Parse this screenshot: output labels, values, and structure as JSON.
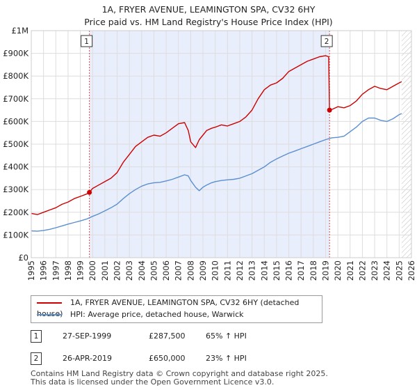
{
  "title_line1": "1A, FRYER AVENUE, LEAMINGTON SPA, CV32 6HY",
  "title_line2": "Price paid vs. HM Land Registry's House Price Index (HPI)",
  "colors": {
    "property": "#cc0000",
    "hpi": "#5b8fd0",
    "band": "#e8eefb",
    "hatch": "#bbbbbb"
  },
  "legend": {
    "property_label": "1A, FRYER AVENUE, LEAMINGTON SPA, CV32 6HY (detached house)",
    "hpi_label": "HPI: Average price, detached house, Warwick"
  },
  "sales": [
    {
      "n": "1",
      "date": "27-SEP-1999",
      "price": "£287,500",
      "hpi": "65% ↑ HPI"
    },
    {
      "n": "2",
      "date": "26-APR-2019",
      "price": "£650,000",
      "hpi": "23% ↑ HPI"
    }
  ],
  "footer_line1": "Contains HM Land Registry data © Crown copyright and database right 2025.",
  "footer_line2": "This data is licensed under the Open Government Licence v3.0.",
  "chart_data": {
    "type": "line",
    "xlim": [
      1995,
      2026
    ],
    "ylim": [
      0,
      1000000
    ],
    "x_ticks": [
      1995,
      1996,
      1997,
      1998,
      1999,
      2000,
      2001,
      2002,
      2003,
      2004,
      2005,
      2006,
      2007,
      2008,
      2009,
      2010,
      2011,
      2012,
      2013,
      2014,
      2015,
      2016,
      2017,
      2018,
      2019,
      2020,
      2021,
      2022,
      2023,
      2024,
      2025,
      2026
    ],
    "y_ticks": [
      0,
      100000,
      200000,
      300000,
      400000,
      500000,
      600000,
      700000,
      800000,
      900000,
      1000000
    ],
    "y_tick_labels": [
      "£0",
      "£100K",
      "£200K",
      "£300K",
      "£400K",
      "£500K",
      "£600K",
      "£700K",
      "£800K",
      "£900K",
      "£1M"
    ],
    "band": [
      1999.74,
      2019.32
    ],
    "hatch_from": 2025.2,
    "markers": [
      {
        "label": "1",
        "x": 1999.74,
        "y": 287500
      },
      {
        "label": "2",
        "x": 2019.32,
        "y": 650000
      }
    ],
    "series": [
      {
        "name": "1A, FRYER AVENUE, LEAMINGTON SPA, CV32 6HY (detached house)",
        "color": "#cc0000",
        "x": [
          1995.0,
          1995.5,
          1996.0,
          1996.5,
          1997.0,
          1997.5,
          1998.0,
          1998.5,
          1999.0,
          1999.5,
          1999.74,
          2000.0,
          2000.5,
          2001.0,
          2001.5,
          2002.0,
          2002.5,
          2003.0,
          2003.5,
          2004.0,
          2004.5,
          2005.0,
          2005.5,
          2006.0,
          2006.5,
          2007.0,
          2007.5,
          2007.8,
          2008.0,
          2008.4,
          2008.7,
          2009.0,
          2009.3,
          2009.7,
          2010.0,
          2010.5,
          2011.0,
          2011.5,
          2012.0,
          2012.5,
          2013.0,
          2013.5,
          2014.0,
          2014.5,
          2015.0,
          2015.5,
          2016.0,
          2016.5,
          2017.0,
          2017.5,
          2018.0,
          2018.5,
          2019.0,
          2019.25,
          2019.32,
          2019.6,
          2020.0,
          2020.5,
          2021.0,
          2021.5,
          2022.0,
          2022.5,
          2023.0,
          2023.5,
          2024.0,
          2024.5,
          2025.0,
          2025.2
        ],
        "values": [
          195000,
          190000,
          200000,
          210000,
          220000,
          235000,
          245000,
          260000,
          270000,
          280000,
          287500,
          305000,
          320000,
          335000,
          350000,
          375000,
          420000,
          455000,
          490000,
          510000,
          530000,
          540000,
          535000,
          550000,
          570000,
          590000,
          595000,
          560000,
          510000,
          485000,
          520000,
          540000,
          560000,
          570000,
          575000,
          585000,
          580000,
          590000,
          600000,
          620000,
          650000,
          700000,
          740000,
          760000,
          770000,
          790000,
          820000,
          835000,
          850000,
          865000,
          875000,
          885000,
          890000,
          885000,
          650000,
          655000,
          665000,
          660000,
          670000,
          690000,
          720000,
          740000,
          755000,
          745000,
          740000,
          755000,
          770000,
          775000
        ]
      },
      {
        "name": "HPI: Average price, detached house, Warwick",
        "color": "#5b8fd0",
        "x": [
          1995.0,
          1995.5,
          1996.0,
          1996.5,
          1997.0,
          1997.5,
          1998.0,
          1998.5,
          1999.0,
          1999.5,
          2000.0,
          2000.5,
          2001.0,
          2001.5,
          2002.0,
          2002.5,
          2003.0,
          2003.5,
          2004.0,
          2004.5,
          2005.0,
          2005.5,
          2006.0,
          2006.5,
          2007.0,
          2007.5,
          2007.8,
          2008.0,
          2008.4,
          2008.7,
          2009.0,
          2009.3,
          2009.7,
          2010.0,
          2010.5,
          2011.0,
          2011.5,
          2012.0,
          2012.5,
          2013.0,
          2013.5,
          2014.0,
          2014.5,
          2015.0,
          2015.5,
          2016.0,
          2016.5,
          2017.0,
          2017.5,
          2018.0,
          2018.5,
          2019.0,
          2019.5,
          2020.0,
          2020.5,
          2021.0,
          2021.5,
          2022.0,
          2022.5,
          2023.0,
          2023.5,
          2024.0,
          2024.5,
          2025.0,
          2025.2
        ],
        "values": [
          118000,
          117000,
          120000,
          125000,
          132000,
          140000,
          148000,
          155000,
          162000,
          170000,
          182000,
          193000,
          206000,
          220000,
          236000,
          260000,
          282000,
          300000,
          315000,
          325000,
          330000,
          332000,
          338000,
          345000,
          355000,
          365000,
          360000,
          340000,
          310000,
          295000,
          310000,
          320000,
          330000,
          335000,
          340000,
          343000,
          345000,
          350000,
          360000,
          370000,
          385000,
          400000,
          420000,
          435000,
          448000,
          460000,
          470000,
          480000,
          490000,
          500000,
          510000,
          520000,
          528000,
          530000,
          535000,
          555000,
          575000,
          600000,
          615000,
          615000,
          605000,
          600000,
          612000,
          630000,
          635000
        ]
      }
    ]
  }
}
